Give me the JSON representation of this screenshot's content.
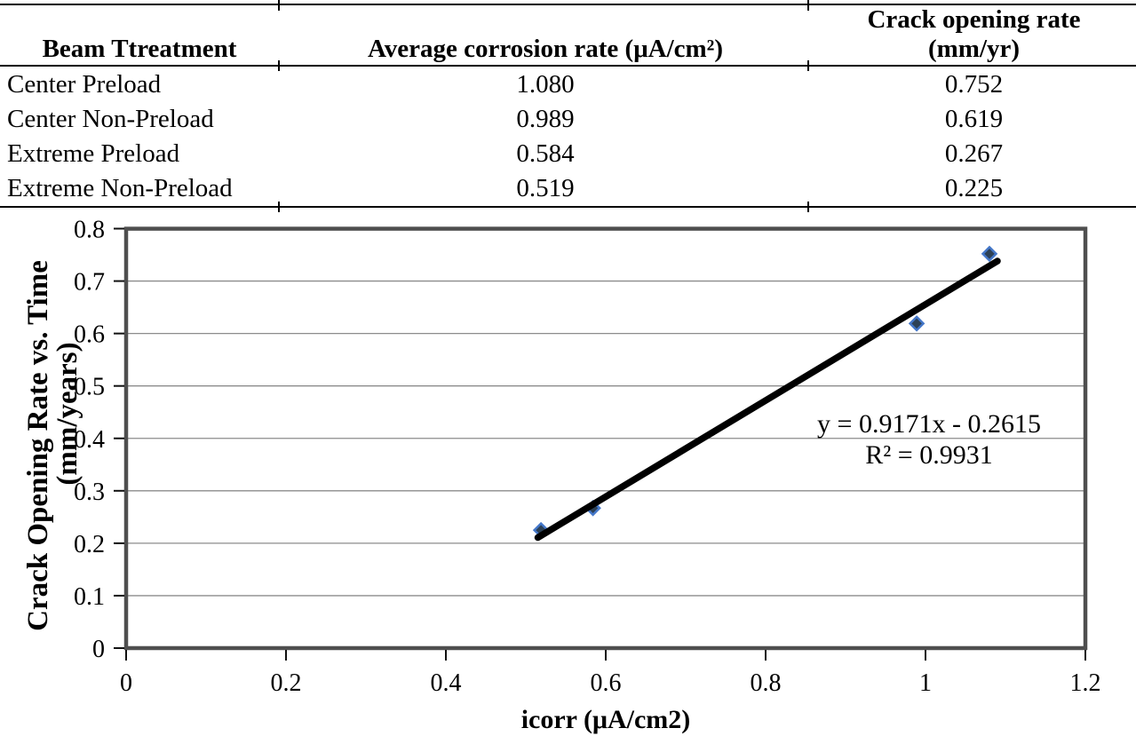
{
  "table": {
    "headers": {
      "col1": "Beam Ttreatment",
      "col2": "Average corrosion rate (μA/cm²)",
      "col3_line1": "Crack opening rate",
      "col3_line2": "(mm/yr)"
    },
    "rows": [
      [
        "Center Preload",
        "1.080",
        "0.752"
      ],
      [
        "Center Non-Preload",
        "0.989",
        "0.619"
      ],
      [
        "Extreme Preload",
        "0.584",
        "0.267"
      ],
      [
        "Extreme Non-Preload",
        "0.519",
        "0.225"
      ]
    ]
  },
  "chart_data": {
    "type": "scatter",
    "title": "",
    "xlabel": "icorr (μA/cm2)",
    "ylabel_line1": "Crack Opening Rate vs. Time",
    "ylabel_line2": "(mm/years)",
    "xlim": [
      0,
      1.2
    ],
    "xtick_step": 0.2,
    "ylim": [
      0,
      0.8
    ],
    "ytick_step": 0.1,
    "grid": "horizontal-only",
    "legend": "none",
    "series": [
      {
        "name": "Crack opening rate vs corrosion rate",
        "marker": "diamond",
        "points": [
          {
            "x": 0.519,
            "y": 0.225
          },
          {
            "x": 0.584,
            "y": 0.267
          },
          {
            "x": 0.989,
            "y": 0.619
          },
          {
            "x": 1.08,
            "y": 0.752
          }
        ]
      }
    ],
    "trendline": {
      "slope": 0.9171,
      "intercept": -0.2615,
      "x_start": 0.515,
      "x_end": 1.09,
      "equation": "y = 0.9171x - 0.2615",
      "r_squared": "R² = 0.9931"
    },
    "colors": {
      "marker_fill": "#2d4156",
      "marker_border": "#4477c9",
      "trendline": "#000000",
      "gridline": "#8c8c8c",
      "frame": "#4f4f4f",
      "tick": "#111111",
      "text": "#000000"
    }
  }
}
